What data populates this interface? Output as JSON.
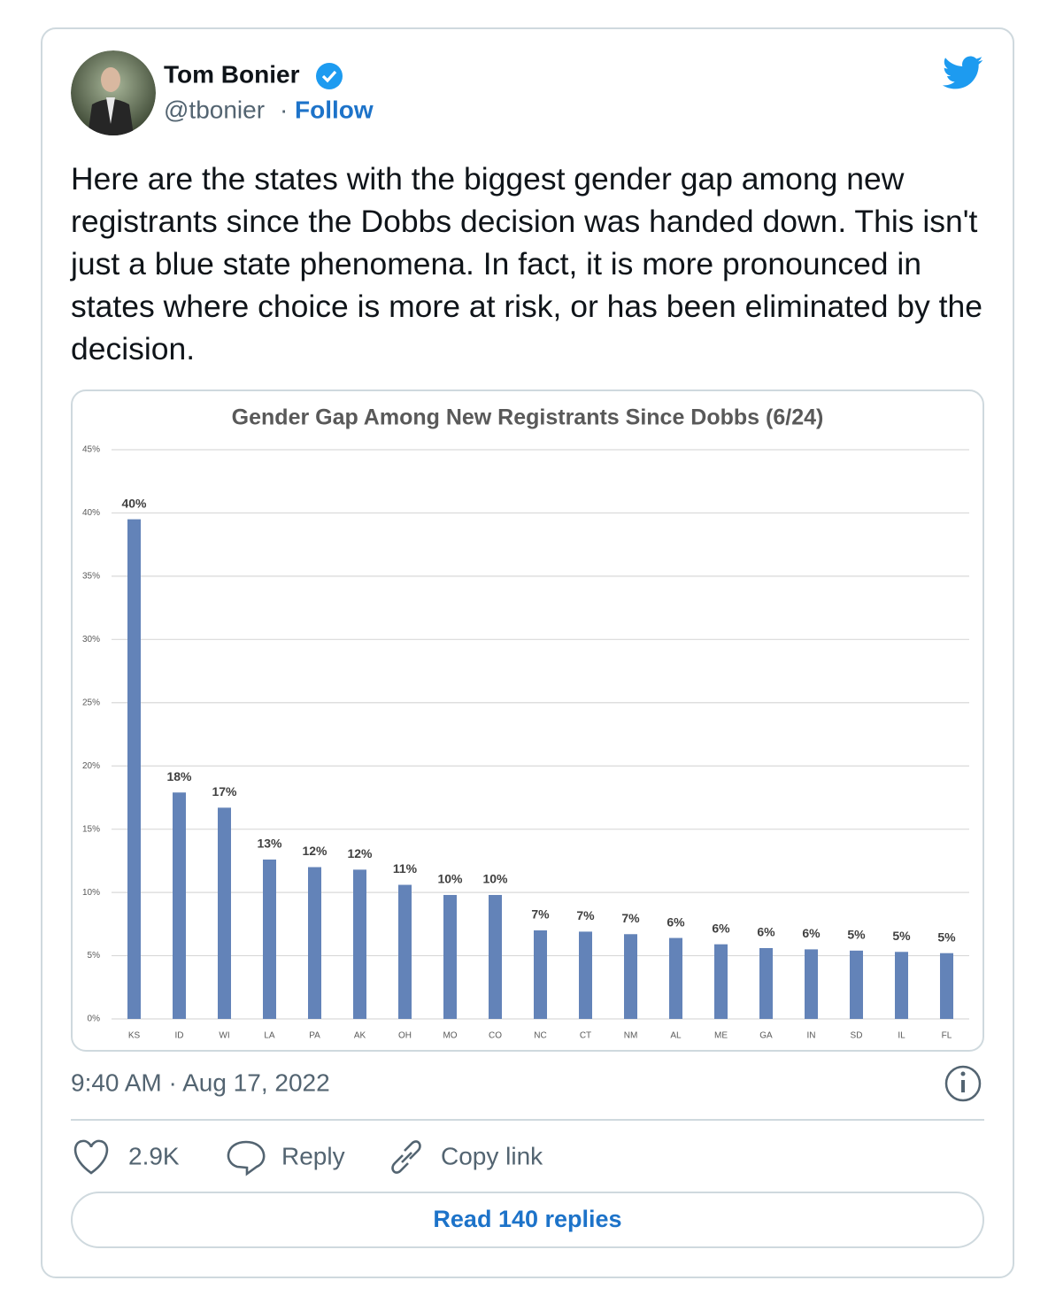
{
  "author": {
    "name": "Tom Bonier",
    "handle": "@tbonier",
    "separator": "·",
    "follow": "Follow"
  },
  "text": "Here are the states with the biggest gender gap among new registrants since the Dobbs decision was handed down. This isn't just a blue state phenomena. In fact, it is more pronounced in states where choice is more at risk, or has been eliminated by the decision.",
  "chart_data": {
    "type": "bar",
    "title": "Gender Gap Among New Registrants Since Dobbs (6/24)",
    "categories": [
      "KS",
      "ID",
      "WI",
      "LA",
      "PA",
      "AK",
      "OH",
      "MO",
      "CO",
      "NC",
      "CT",
      "NM",
      "AL",
      "ME",
      "GA",
      "IN",
      "SD",
      "IL",
      "FL"
    ],
    "values": [
      39.5,
      17.9,
      16.7,
      12.6,
      12.0,
      11.8,
      10.6,
      9.8,
      9.8,
      7.0,
      6.9,
      6.7,
      6.4,
      5.9,
      5.6,
      5.5,
      5.4,
      5.3,
      5.2
    ],
    "value_labels": [
      "40%",
      "18%",
      "17%",
      "13%",
      "12%",
      "12%",
      "11%",
      "10%",
      "10%",
      "7%",
      "7%",
      "7%",
      "6%",
      "6%",
      "6%",
      "6%",
      "5%",
      "5%",
      "5%"
    ],
    "color": "#6383b8",
    "ylim": [
      0,
      45
    ],
    "yticks": [
      {
        "value": 0,
        "label": "0%"
      },
      {
        "value": 5,
        "label": "5%"
      },
      {
        "value": 10,
        "label": "10%"
      },
      {
        "value": 15,
        "label": "15%"
      },
      {
        "value": 20,
        "label": "20%"
      },
      {
        "value": 25,
        "label": "25%"
      },
      {
        "value": 30,
        "label": "30%"
      },
      {
        "value": 35,
        "label": "35%"
      },
      {
        "value": 40,
        "label": "40%"
      },
      {
        "value": 45,
        "label": "45%"
      }
    ],
    "grid": true
  },
  "timestamp": "9:40 AM · Aug 17, 2022",
  "actions": {
    "likes": "2.9K",
    "reply": "Reply",
    "copy": "Copy link"
  },
  "read_replies": "Read 140 replies"
}
